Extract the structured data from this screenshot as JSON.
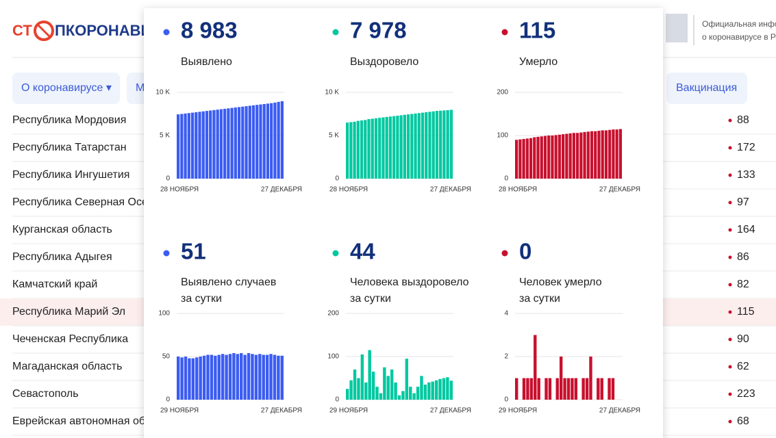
{
  "header": {
    "logo_left": "СТ",
    "logo_right": "ПКОРОНАВИРУС",
    "info_line1": "Официальная информация",
    "info_line2": "о коронавирусе в России"
  },
  "nav": [
    "О коронавирусе ▾",
    "М",
    "Вакцинация"
  ],
  "table": {
    "highlight": 7,
    "rows": [
      [
        "Республика Мордовия",
        88
      ],
      [
        "Республика Татарстан",
        172
      ],
      [
        "Республика Ингушетия",
        133
      ],
      [
        "Республика Северная Осетия — Алания",
        97
      ],
      [
        "Курганская область",
        164
      ],
      [
        "Республика Адыгея",
        86
      ],
      [
        "Камчатский край",
        82
      ],
      [
        "Республика Марий Эл",
        115
      ],
      [
        "Чеченская Республика",
        90
      ],
      [
        "Магаданская область",
        62
      ],
      [
        "Севастополь",
        223
      ],
      [
        "Еврейская автономная область",
        68
      ]
    ]
  },
  "chart_data": [
    {
      "type": "bar",
      "headline": "8 983",
      "title": [
        "Выявлено"
      ],
      "color": "#3b5cf2",
      "ylim": [
        0,
        10000
      ],
      "yticks": [
        0,
        {
          "value": 5000,
          "label": "5 K"
        },
        {
          "value": 10000,
          "label": "10 K"
        }
      ],
      "grid": true,
      "categories": [
        "28 НОЯБРЯ",
        null,
        null,
        null,
        null,
        null,
        null,
        null,
        null,
        null,
        null,
        null,
        null,
        null,
        null,
        null,
        null,
        null,
        null,
        null,
        null,
        null,
        null,
        null,
        null,
        null,
        null,
        null,
        null,
        "27 ДЕКАБРЯ"
      ],
      "values": [
        7450,
        7500,
        7550,
        7600,
        7650,
        7700,
        7750,
        7800,
        7850,
        7900,
        7950,
        8000,
        8050,
        8100,
        8150,
        8200,
        8250,
        8300,
        8350,
        8400,
        8450,
        8500,
        8550,
        8600,
        8650,
        8700,
        8750,
        8820,
        8900,
        8983
      ]
    },
    {
      "type": "bar",
      "headline": "7 978",
      "title": [
        "Выздоровело"
      ],
      "color": "#00c8a0",
      "ylim": [
        0,
        10000
      ],
      "yticks": [
        0,
        {
          "value": 5000,
          "label": "5 K"
        },
        {
          "value": 10000,
          "label": "10 K"
        }
      ],
      "grid": true,
      "categories": [
        "28 НОЯБРЯ",
        null,
        null,
        null,
        null,
        null,
        null,
        null,
        null,
        null,
        null,
        null,
        null,
        null,
        null,
        null,
        null,
        null,
        null,
        null,
        null,
        null,
        null,
        null,
        null,
        null,
        null,
        null,
        null,
        "27 ДЕКАБРЯ"
      ],
      "values": [
        6500,
        6550,
        6600,
        6700,
        6750,
        6800,
        6900,
        6950,
        7000,
        7050,
        7100,
        7150,
        7200,
        7250,
        7300,
        7350,
        7400,
        7450,
        7500,
        7550,
        7600,
        7650,
        7700,
        7750,
        7800,
        7850,
        7880,
        7910,
        7940,
        7978
      ]
    },
    {
      "type": "bar",
      "headline": "115",
      "title": [
        "Умерло"
      ],
      "color": "#c8102e",
      "ylim": [
        0,
        200
      ],
      "yticks": [
        0,
        100,
        200
      ],
      "grid": true,
      "categories": [
        "28 НОЯБРЯ",
        null,
        null,
        null,
        null,
        null,
        null,
        null,
        null,
        null,
        null,
        null,
        null,
        null,
        null,
        null,
        null,
        null,
        null,
        null,
        null,
        null,
        null,
        null,
        null,
        null,
        null,
        null,
        null,
        "27 ДЕКАБРЯ"
      ],
      "values": [
        90,
        91,
        92,
        93,
        94,
        96,
        97,
        98,
        99,
        100,
        100,
        101,
        102,
        103,
        104,
        105,
        106,
        106,
        107,
        108,
        109,
        110,
        110,
        111,
        112,
        112,
        113,
        114,
        114,
        115
      ]
    },
    {
      "type": "bar",
      "headline": "51",
      "title": [
        "Выявлено случаев",
        "за сутки"
      ],
      "color": "#3b5cf2",
      "ylim": [
        0,
        100
      ],
      "yticks": [
        0,
        50,
        100
      ],
      "grid": true,
      "categories": [
        "29 НОЯБРЯ",
        null,
        null,
        null,
        null,
        null,
        null,
        null,
        null,
        null,
        null,
        null,
        null,
        null,
        null,
        null,
        null,
        null,
        null,
        null,
        null,
        null,
        null,
        null,
        null,
        null,
        null,
        null,
        "27 ДЕКАБРЯ"
      ],
      "values": [
        50,
        49,
        50,
        48,
        48,
        49,
        50,
        51,
        52,
        52,
        51,
        52,
        53,
        52,
        53,
        54,
        53,
        54,
        52,
        54,
        53,
        52,
        53,
        52,
        52,
        53,
        52,
        51,
        51
      ]
    },
    {
      "type": "bar",
      "headline": "44",
      "title": [
        "Человека выздоровело",
        "за сутки"
      ],
      "color": "#00c8a0",
      "ylim": [
        0,
        200
      ],
      "yticks": [
        0,
        100,
        200
      ],
      "grid": true,
      "categories": [
        "29 НОЯБРЯ",
        null,
        null,
        null,
        null,
        null,
        null,
        null,
        null,
        null,
        null,
        null,
        null,
        null,
        null,
        null,
        null,
        null,
        null,
        null,
        null,
        null,
        null,
        null,
        null,
        null,
        null,
        null,
        "27 ДЕКАБРЯ"
      ],
      "values": [
        25,
        45,
        70,
        50,
        105,
        40,
        115,
        65,
        30,
        15,
        75,
        55,
        70,
        40,
        10,
        20,
        95,
        30,
        15,
        30,
        55,
        35,
        40,
        42,
        45,
        48,
        50,
        52,
        44
      ]
    },
    {
      "type": "bar",
      "headline": "0",
      "title": [
        "Человек умерло",
        "за сутки"
      ],
      "color": "#c8102e",
      "ylim": [
        0,
        4
      ],
      "yticks": [
        0,
        2,
        4
      ],
      "grid": true,
      "categories": [
        "29 НОЯБРЯ",
        null,
        null,
        null,
        null,
        null,
        null,
        null,
        null,
        null,
        null,
        null,
        null,
        null,
        null,
        null,
        null,
        null,
        null,
        null,
        null,
        null,
        null,
        null,
        null,
        null,
        null,
        null,
        "27 ДЕКАБРЯ"
      ],
      "values": [
        1,
        0,
        1,
        1,
        1,
        3,
        1,
        0,
        1,
        1,
        0,
        1,
        2,
        1,
        1,
        1,
        1,
        0,
        1,
        1,
        2,
        0,
        1,
        1,
        0,
        1,
        1,
        0,
        0
      ]
    }
  ]
}
